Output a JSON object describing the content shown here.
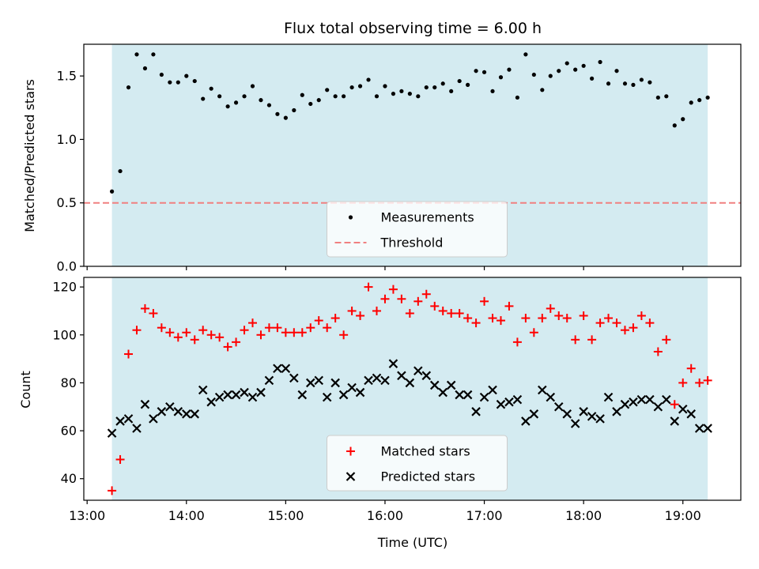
{
  "chart_data": {
    "title": "Flux total observing time = 6.00 h",
    "xlabel": "Time (UTC)",
    "x_ticks": [
      "13:00",
      "14:00",
      "15:00",
      "16:00",
      "17:00",
      "18:00",
      "19:00"
    ],
    "xlim": [
      "12:58",
      "19:35"
    ],
    "observing_window": [
      "13:15",
      "19:15"
    ],
    "window_color": "#d4ebf1",
    "panels": [
      {
        "type": "scatter",
        "ylabel": "Matched/Predicted stars",
        "ylim": [
          0,
          1.75
        ],
        "y_ticks": [
          0.0,
          0.5,
          1.0,
          1.5
        ],
        "y_tick_labels": [
          "0.0",
          "0.5",
          "1.0",
          "1.5"
        ],
        "threshold": 0.5,
        "legend": {
          "position": "lower center",
          "entries": [
            "Measurements",
            "Threshold"
          ]
        },
        "series": [
          {
            "name": "Measurements",
            "color": "#000000",
            "marker": "dot",
            "points": [
              [
                "13:15",
                0.59
              ],
              [
                "13:20",
                0.75
              ],
              [
                "13:25",
                1.41
              ],
              [
                "13:30",
                1.67
              ],
              [
                "13:35",
                1.56
              ],
              [
                "13:40",
                1.67
              ],
              [
                "13:45",
                1.51
              ],
              [
                "13:50",
                1.45
              ],
              [
                "13:55",
                1.45
              ],
              [
                "14:00",
                1.5
              ],
              [
                "14:05",
                1.46
              ],
              [
                "14:10",
                1.32
              ],
              [
                "14:15",
                1.4
              ],
              [
                "14:20",
                1.34
              ],
              [
                "14:25",
                1.26
              ],
              [
                "14:30",
                1.29
              ],
              [
                "14:35",
                1.34
              ],
              [
                "14:40",
                1.42
              ],
              [
                "14:45",
                1.31
              ],
              [
                "14:50",
                1.27
              ],
              [
                "14:55",
                1.2
              ],
              [
                "15:00",
                1.17
              ],
              [
                "15:05",
                1.23
              ],
              [
                "15:10",
                1.35
              ],
              [
                "15:15",
                1.28
              ],
              [
                "15:20",
                1.31
              ],
              [
                "15:25",
                1.39
              ],
              [
                "15:30",
                1.34
              ],
              [
                "15:35",
                1.34
              ],
              [
                "15:40",
                1.41
              ],
              [
                "15:45",
                1.42
              ],
              [
                "15:50",
                1.47
              ],
              [
                "15:55",
                1.34
              ],
              [
                "16:00",
                1.42
              ],
              [
                "16:05",
                1.36
              ],
              [
                "16:10",
                1.38
              ],
              [
                "16:15",
                1.36
              ],
              [
                "16:20",
                1.34
              ],
              [
                "16:25",
                1.41
              ],
              [
                "16:30",
                1.41
              ],
              [
                "16:35",
                1.44
              ],
              [
                "16:40",
                1.38
              ],
              [
                "16:45",
                1.46
              ],
              [
                "16:50",
                1.43
              ],
              [
                "16:55",
                1.54
              ],
              [
                "17:00",
                1.53
              ],
              [
                "17:05",
                1.38
              ],
              [
                "17:10",
                1.49
              ],
              [
                "17:15",
                1.55
              ],
              [
                "17:20",
                1.33
              ],
              [
                "17:25",
                1.67
              ],
              [
                "17:30",
                1.51
              ],
              [
                "17:35",
                1.39
              ],
              [
                "17:40",
                1.5
              ],
              [
                "17:45",
                1.54
              ],
              [
                "17:50",
                1.6
              ],
              [
                "17:55",
                1.55
              ],
              [
                "18:00",
                1.58
              ],
              [
                "18:05",
                1.48
              ],
              [
                "18:10",
                1.61
              ],
              [
                "18:15",
                1.44
              ],
              [
                "18:20",
                1.54
              ],
              [
                "18:25",
                1.44
              ],
              [
                "18:30",
                1.43
              ],
              [
                "18:35",
                1.47
              ],
              [
                "18:40",
                1.45
              ],
              [
                "18:45",
                1.33
              ],
              [
                "18:50",
                1.34
              ],
              [
                "18:55",
                1.11
              ],
              [
                "19:00",
                1.16
              ],
              [
                "19:05",
                1.29
              ],
              [
                "19:10",
                1.31
              ],
              [
                "19:15",
                1.33
              ]
            ]
          },
          {
            "name": "Threshold",
            "color": "#f08080",
            "style": "dashed"
          }
        ]
      },
      {
        "type": "scatter",
        "ylabel": "Count",
        "ylim": [
          31,
          124
        ],
        "y_ticks": [
          40,
          60,
          80,
          100,
          120
        ],
        "legend": {
          "position": "lower center",
          "entries": [
            "Matched stars",
            "Predicted stars"
          ]
        },
        "series": [
          {
            "name": "Matched stars",
            "color": "#ff0000",
            "marker": "plus",
            "points": [
              [
                "13:15",
                35
              ],
              [
                "13:20",
                48
              ],
              [
                "13:25",
                92
              ],
              [
                "13:30",
                102
              ],
              [
                "13:35",
                111
              ],
              [
                "13:40",
                109
              ],
              [
                "13:45",
                103
              ],
              [
                "13:50",
                101
              ],
              [
                "13:55",
                99
              ],
              [
                "14:00",
                101
              ],
              [
                "14:05",
                98
              ],
              [
                "14:10",
                102
              ],
              [
                "14:15",
                100
              ],
              [
                "14:20",
                99
              ],
              [
                "14:25",
                95
              ],
              [
                "14:30",
                97
              ],
              [
                "14:35",
                102
              ],
              [
                "14:40",
                105
              ],
              [
                "14:45",
                100
              ],
              [
                "14:50",
                103
              ],
              [
                "14:55",
                103
              ],
              [
                "15:00",
                101
              ],
              [
                "15:05",
                101
              ],
              [
                "15:10",
                101
              ],
              [
                "15:15",
                103
              ],
              [
                "15:20",
                106
              ],
              [
                "15:25",
                103
              ],
              [
                "15:30",
                107
              ],
              [
                "15:35",
                100
              ],
              [
                "15:40",
                110
              ],
              [
                "15:45",
                108
              ],
              [
                "15:50",
                120
              ],
              [
                "15:55",
                110
              ],
              [
                "16:00",
                115
              ],
              [
                "16:05",
                119
              ],
              [
                "16:10",
                115
              ],
              [
                "16:15",
                109
              ],
              [
                "16:20",
                114
              ],
              [
                "16:25",
                117
              ],
              [
                "16:30",
                112
              ],
              [
                "16:35",
                110
              ],
              [
                "16:40",
                109
              ],
              [
                "16:45",
                109
              ],
              [
                "16:50",
                107
              ],
              [
                "16:55",
                105
              ],
              [
                "17:00",
                114
              ],
              [
                "17:05",
                107
              ],
              [
                "17:10",
                106
              ],
              [
                "17:15",
                112
              ],
              [
                "17:20",
                97
              ],
              [
                "17:25",
                107
              ],
              [
                "17:30",
                101
              ],
              [
                "17:35",
                107
              ],
              [
                "17:40",
                111
              ],
              [
                "17:45",
                108
              ],
              [
                "17:50",
                107
              ],
              [
                "17:55",
                98
              ],
              [
                "18:00",
                108
              ],
              [
                "18:05",
                98
              ],
              [
                "18:10",
                105
              ],
              [
                "18:15",
                107
              ],
              [
                "18:20",
                105
              ],
              [
                "18:25",
                102
              ],
              [
                "18:30",
                103
              ],
              [
                "18:35",
                108
              ],
              [
                "18:40",
                105
              ],
              [
                "18:45",
                93
              ],
              [
                "18:50",
                98
              ],
              [
                "18:55",
                71
              ],
              [
                "19:00",
                80
              ],
              [
                "19:05",
                86
              ],
              [
                "19:10",
                80
              ],
              [
                "19:15",
                81
              ]
            ]
          },
          {
            "name": "Predicted stars",
            "color": "#000000",
            "marker": "x",
            "points": [
              [
                "13:15",
                59
              ],
              [
                "13:20",
                64
              ],
              [
                "13:25",
                65
              ],
              [
                "13:30",
                61
              ],
              [
                "13:35",
                71
              ],
              [
                "13:40",
                65
              ],
              [
                "13:45",
                68
              ],
              [
                "13:50",
                70
              ],
              [
                "13:55",
                68
              ],
              [
                "14:00",
                67
              ],
              [
                "14:05",
                67
              ],
              [
                "14:10",
                77
              ],
              [
                "14:15",
                72
              ],
              [
                "14:20",
                74
              ],
              [
                "14:25",
                75
              ],
              [
                "14:30",
                75
              ],
              [
                "14:35",
                76
              ],
              [
                "14:40",
                74
              ],
              [
                "14:45",
                76
              ],
              [
                "14:50",
                81
              ],
              [
                "14:55",
                86
              ],
              [
                "15:00",
                86
              ],
              [
                "15:05",
                82
              ],
              [
                "15:10",
                75
              ],
              [
                "15:15",
                80
              ],
              [
                "15:20",
                81
              ],
              [
                "15:25",
                74
              ],
              [
                "15:30",
                80
              ],
              [
                "15:35",
                75
              ],
              [
                "15:40",
                78
              ],
              [
                "15:45",
                76
              ],
              [
                "15:50",
                81
              ],
              [
                "15:55",
                82
              ],
              [
                "16:00",
                81
              ],
              [
                "16:05",
                88
              ],
              [
                "16:10",
                83
              ],
              [
                "16:15",
                80
              ],
              [
                "16:20",
                85
              ],
              [
                "16:25",
                83
              ],
              [
                "16:30",
                79
              ],
              [
                "16:35",
                76
              ],
              [
                "16:40",
                79
              ],
              [
                "16:45",
                75
              ],
              [
                "16:50",
                75
              ],
              [
                "16:55",
                68
              ],
              [
                "17:00",
                74
              ],
              [
                "17:05",
                77
              ],
              [
                "17:10",
                71
              ],
              [
                "17:15",
                72
              ],
              [
                "17:20",
                73
              ],
              [
                "17:25",
                64
              ],
              [
                "17:30",
                67
              ],
              [
                "17:35",
                77
              ],
              [
                "17:40",
                74
              ],
              [
                "17:45",
                70
              ],
              [
                "17:50",
                67
              ],
              [
                "17:55",
                63
              ],
              [
                "18:00",
                68
              ],
              [
                "18:05",
                66
              ],
              [
                "18:10",
                65
              ],
              [
                "18:15",
                74
              ],
              [
                "18:20",
                68
              ],
              [
                "18:25",
                71
              ],
              [
                "18:30",
                72
              ],
              [
                "18:35",
                73
              ],
              [
                "18:40",
                73
              ],
              [
                "18:45",
                70
              ],
              [
                "18:50",
                73
              ],
              [
                "18:55",
                64
              ],
              [
                "19:00",
                69
              ],
              [
                "19:05",
                67
              ],
              [
                "19:10",
                61
              ],
              [
                "19:15",
                61
              ]
            ]
          }
        ]
      }
    ]
  }
}
